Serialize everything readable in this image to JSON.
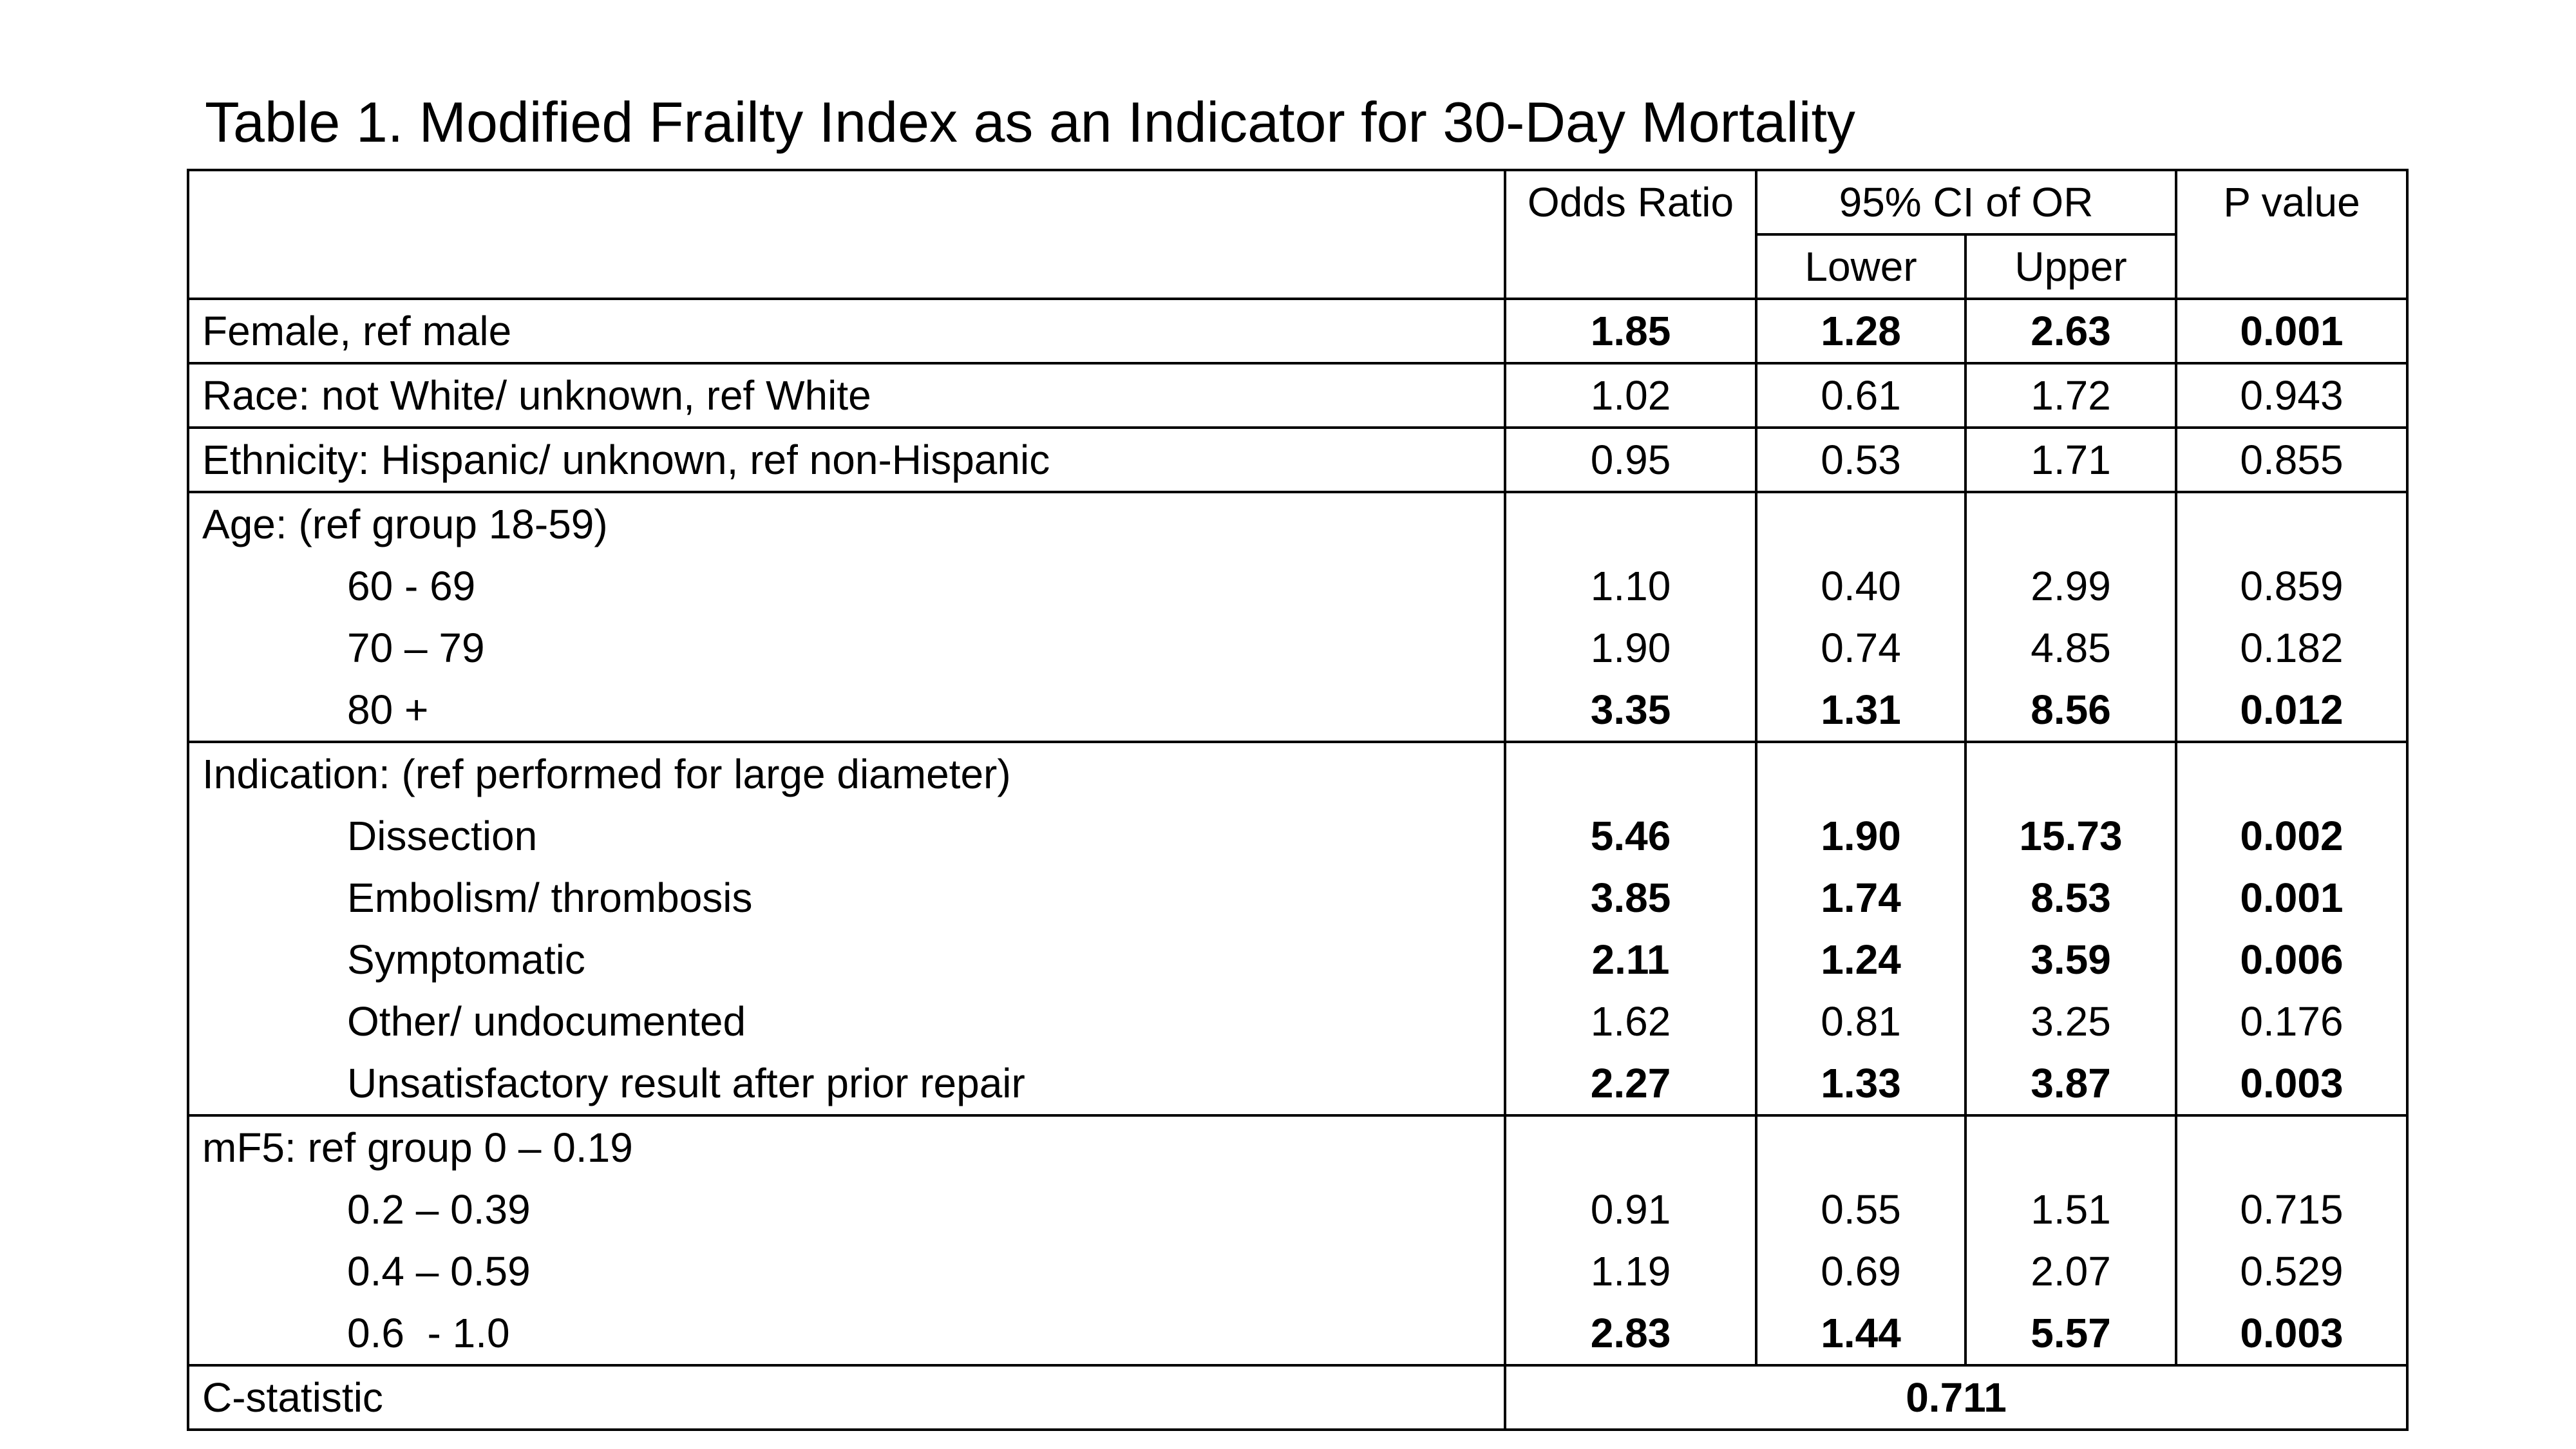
{
  "title": "Table 1.  Modified Frailty Index as an Indicator for 30-Day Mortality",
  "header": {
    "odds_ratio": "Odds Ratio",
    "ci": "95% CI of OR",
    "lower": "Lower",
    "upper": "Upper",
    "p_value": "P value"
  },
  "rows": {
    "female": {
      "label": "Female, ref male",
      "or": "1.85",
      "lower": "1.28",
      "upper": "2.63",
      "p": "0.001"
    },
    "race": {
      "label": "Race: not White/ unknown, ref White",
      "or": "1.02",
      "lower": "0.61",
      "upper": "1.72",
      "p": "0.943"
    },
    "ethnicity": {
      "label": "Ethnicity: Hispanic/ unknown, ref non-Hispanic",
      "or": "0.95",
      "lower": "0.53",
      "upper": "1.71",
      "p": "0.855"
    }
  },
  "age": {
    "label": "Age: (ref group 18-59)",
    "items": [
      {
        "label": "60 - 69",
        "or": "1.10",
        "lower": "0.40",
        "upper": "2.99",
        "p": "0.859"
      },
      {
        "label": "70 – 79",
        "or": "1.90",
        "lower": "0.74",
        "upper": "4.85",
        "p": "0.182"
      },
      {
        "label": "80 +",
        "or": "3.35",
        "lower": "1.31",
        "upper": "8.56",
        "p": "0.012"
      }
    ]
  },
  "indication": {
    "label": "Indication: (ref performed for large diameter)",
    "items": [
      {
        "label": "Dissection",
        "or": "5.46",
        "lower": "1.90",
        "upper": "15.73",
        "p": "0.002"
      },
      {
        "label": "Embolism/ thrombosis",
        "or": "3.85",
        "lower": "1.74",
        "upper": "8.53",
        "p": "0.001"
      },
      {
        "label": "Symptomatic",
        "or": "2.11",
        "lower": "1.24",
        "upper": "3.59",
        "p": "0.006"
      },
      {
        "label": "Other/ undocumented",
        "or": "1.62",
        "lower": "0.81",
        "upper": "3.25",
        "p": "0.176"
      },
      {
        "label": "Unsatisfactory result after prior repair",
        "or": "2.27",
        "lower": "1.33",
        "upper": "3.87",
        "p": "0.003"
      }
    ]
  },
  "mf5": {
    "label": "mF5: ref group 0 – 0.19",
    "items": [
      {
        "label": "0.2 – 0.39",
        "or": "0.91",
        "lower": "0.55",
        "upper": "1.51",
        "p": "0.715"
      },
      {
        "label": "0.4 – 0.59",
        "or": "1.19",
        "lower": "0.69",
        "upper": "2.07",
        "p": "0.529"
      },
      {
        "label": "0.6  - 1.0",
        "or": "2.83",
        "lower": "1.44",
        "upper": "5.57",
        "p": "0.003"
      }
    ]
  },
  "c_statistic": {
    "label": "C-statistic",
    "value": "0.711"
  }
}
